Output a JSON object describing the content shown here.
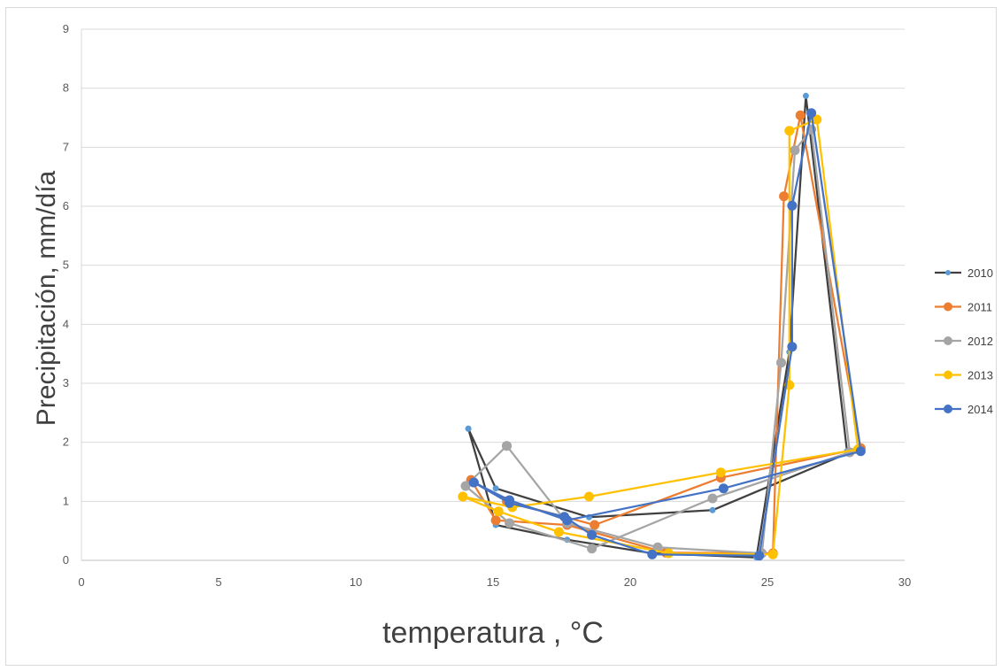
{
  "chart_data": {
    "type": "line",
    "title": "",
    "xlabel": "temperatura , °C",
    "ylabel": "Precipitación, mm/día",
    "xlim": [
      0,
      30
    ],
    "ylim": [
      0,
      9
    ],
    "xticks": [
      0,
      5,
      10,
      15,
      20,
      25,
      30
    ],
    "yticks": [
      0,
      1,
      2,
      3,
      4,
      5,
      6,
      7,
      8,
      9
    ],
    "grid": "horizontal",
    "legend_position": "right",
    "series": [
      {
        "name": "2010",
        "color": "#404040",
        "marker_color": "#5b9bd5",
        "marker": "small",
        "points": [
          [
            14.1,
            2.23
          ],
          [
            15.1,
            0.6
          ],
          [
            17.7,
            0.35
          ],
          [
            20.8,
            0.12
          ],
          [
            24.6,
            0.05
          ],
          [
            25.8,
            3.53
          ],
          [
            26.4,
            7.87
          ],
          [
            27.9,
            1.85
          ],
          [
            28.1,
            1.85
          ],
          [
            23.0,
            0.85
          ],
          [
            18.5,
            0.73
          ],
          [
            15.1,
            1.22
          ],
          [
            14.1,
            2.23
          ]
        ]
      },
      {
        "name": "2011",
        "color": "#ed7d31",
        "marker": "large",
        "points": [
          [
            14.2,
            1.36
          ],
          [
            15.1,
            0.68
          ],
          [
            17.7,
            0.6
          ],
          [
            21.3,
            0.13
          ],
          [
            25.2,
            0.12
          ],
          [
            25.6,
            6.17
          ],
          [
            26.2,
            7.54
          ],
          [
            28.4,
            1.9
          ],
          [
            23.3,
            1.4
          ],
          [
            18.7,
            0.6
          ],
          [
            15.5,
            1.0
          ],
          [
            14.2,
            1.36
          ]
        ]
      },
      {
        "name": "2012",
        "color": "#a5a5a5",
        "marker": "large",
        "points": [
          [
            15.5,
            1.94
          ],
          [
            17.7,
            0.63
          ],
          [
            21.0,
            0.22
          ],
          [
            24.8,
            0.12
          ],
          [
            25.5,
            3.35
          ],
          [
            26.0,
            6.95
          ],
          [
            26.6,
            7.3
          ],
          [
            28.0,
            1.83
          ],
          [
            23.0,
            1.05
          ],
          [
            18.6,
            0.2
          ],
          [
            15.6,
            0.63
          ],
          [
            14.0,
            1.26
          ],
          [
            15.5,
            1.94
          ]
        ]
      },
      {
        "name": "2013",
        "color": "#ffc000",
        "marker": "large",
        "points": [
          [
            13.9,
            1.08
          ],
          [
            15.2,
            0.83
          ],
          [
            17.4,
            0.48
          ],
          [
            21.4,
            0.12
          ],
          [
            25.2,
            0.1
          ],
          [
            25.8,
            2.97
          ],
          [
            25.8,
            7.28
          ],
          [
            26.8,
            7.47
          ],
          [
            28.3,
            1.88
          ],
          [
            23.3,
            1.49
          ],
          [
            18.5,
            1.08
          ],
          [
            15.7,
            0.9
          ],
          [
            13.9,
            1.08
          ]
        ]
      },
      {
        "name": "2014",
        "color": "#4472c4",
        "marker": "large",
        "points": [
          [
            14.3,
            1.32
          ],
          [
            15.6,
            0.97
          ],
          [
            17.6,
            0.74
          ],
          [
            18.6,
            0.43
          ],
          [
            20.8,
            0.1
          ],
          [
            24.7,
            0.08
          ],
          [
            25.9,
            3.62
          ],
          [
            25.9,
            6.01
          ],
          [
            26.6,
            7.58
          ],
          [
            28.4,
            1.85
          ],
          [
            23.4,
            1.22
          ],
          [
            17.7,
            0.68
          ],
          [
            15.6,
            1.02
          ],
          [
            14.3,
            1.32
          ]
        ]
      }
    ]
  }
}
